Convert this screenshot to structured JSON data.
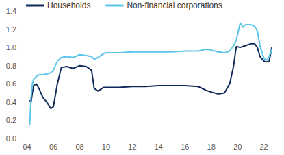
{
  "chart_data": {
    "type": "line",
    "x": [
      2004.2,
      2004.3,
      2004.4,
      2004.5,
      2004.7,
      2004.9,
      2005.2,
      2005.5,
      2005.8,
      2006.0,
      2006.3,
      2006.6,
      2007.0,
      2007.5,
      2008.0,
      2008.5,
      2008.9,
      2009.1,
      2009.4,
      2009.8,
      2010.0,
      2011.0,
      2012.0,
      2013.0,
      2014.0,
      2015.0,
      2016.0,
      2017.0,
      2017.6,
      2018.0,
      2018.5,
      2019.0,
      2019.4,
      2019.7,
      2019.9,
      2020.2,
      2020.4,
      2020.6,
      2021.0,
      2021.3,
      2021.5,
      2021.7,
      2022.0,
      2022.2,
      2022.4,
      2022.6
    ],
    "series": [
      {
        "name": "Households",
        "color": "#0f2a5a",
        "values": [
          0.42,
          0.4,
          0.5,
          0.58,
          0.6,
          0.55,
          0.45,
          0.4,
          0.33,
          0.35,
          0.6,
          0.78,
          0.79,
          0.77,
          0.8,
          0.79,
          0.75,
          0.55,
          0.52,
          0.56,
          0.56,
          0.56,
          0.57,
          0.57,
          0.58,
          0.58,
          0.58,
          0.57,
          0.53,
          0.51,
          0.49,
          0.5,
          0.6,
          0.8,
          1.01,
          1.0,
          1.01,
          1.02,
          1.04,
          1.04,
          1.0,
          0.9,
          0.85,
          0.84,
          0.85,
          1.0
        ]
      },
      {
        "name": "Non-financial corporations",
        "color": "#5bc5e9",
        "values": [
          0.15,
          0.45,
          0.6,
          0.65,
          0.68,
          0.7,
          0.7,
          0.71,
          0.72,
          0.75,
          0.85,
          0.89,
          0.9,
          0.89,
          0.92,
          0.91,
          0.9,
          0.87,
          0.89,
          0.93,
          0.94,
          0.94,
          0.95,
          0.95,
          0.95,
          0.95,
          0.96,
          0.96,
          0.98,
          0.97,
          0.95,
          0.94,
          0.96,
          1.02,
          1.08,
          1.27,
          1.22,
          1.25,
          1.25,
          1.23,
          1.18,
          1.02,
          0.88,
          0.86,
          0.9,
          0.98
        ]
      }
    ],
    "xlim": [
      2003.5,
      2022.8
    ],
    "xticks": [
      {
        "value": 2004,
        "label": "04"
      },
      {
        "value": 2006,
        "label": "06"
      },
      {
        "value": 2008,
        "label": "08"
      },
      {
        "value": 2010,
        "label": "10"
      },
      {
        "value": 2012,
        "label": "12"
      },
      {
        "value": 2014,
        "label": "14"
      },
      {
        "value": 2016,
        "label": "16"
      },
      {
        "value": 2018,
        "label": "18"
      },
      {
        "value": 2020,
        "label": "20"
      },
      {
        "value": 2022,
        "label": "22"
      }
    ],
    "ylim": [
      0,
      1.4
    ],
    "yticks": [
      {
        "value": 0,
        "label": "0.0"
      },
      0.2,
      0.4,
      0.6,
      0.8,
      {
        "value": 1,
        "label": "1.0"
      },
      1.2,
      1.4
    ],
    "grid": false,
    "legend": "upper left",
    "marker": "none"
  }
}
